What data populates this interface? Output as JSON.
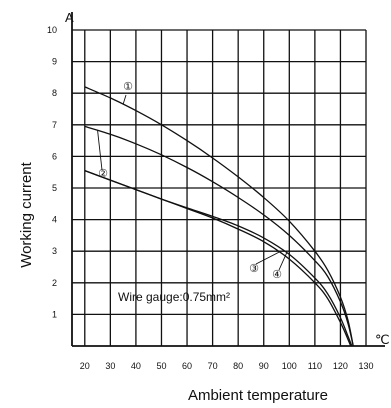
{
  "chart_data": {
    "type": "line",
    "title": "",
    "xlabel": "Ambient temperature",
    "ylabel": "Working current",
    "x_unit": "℃",
    "y_unit": "A",
    "xlim": [
      15,
      130
    ],
    "ylim": [
      0,
      10
    ],
    "x_ticks": [
      20,
      30,
      40,
      50,
      60,
      70,
      80,
      90,
      100,
      110,
      120,
      130
    ],
    "y_ticks": [
      1,
      2,
      3,
      4,
      5,
      6,
      7,
      8,
      9,
      10
    ],
    "grid": true,
    "annotation": "Wire gauge:0.75mm²",
    "series": [
      {
        "name": "①",
        "x": [
          20,
          30,
          40,
          50,
          60,
          70,
          80,
          90,
          100,
          110,
          115,
          120,
          123,
          125
        ],
        "y": [
          8.2,
          7.85,
          7.45,
          7.0,
          6.5,
          5.95,
          5.35,
          4.7,
          3.95,
          3.0,
          2.4,
          1.55,
          0.8,
          0.0
        ]
      },
      {
        "name": "②",
        "x": [
          20,
          30,
          40,
          50,
          60,
          70,
          80,
          90,
          100,
          110,
          115,
          120,
          123,
          125
        ],
        "y": [
          6.95,
          6.7,
          6.4,
          6.05,
          5.65,
          5.2,
          4.7,
          4.15,
          3.5,
          2.7,
          2.2,
          1.4,
          0.7,
          0.0
        ]
      },
      {
        "name": "③",
        "x": [
          20,
          30,
          40,
          50,
          60,
          70,
          80,
          90,
          100,
          110,
          115,
          120,
          123,
          124
        ],
        "y": [
          5.55,
          5.25,
          4.95,
          4.65,
          4.35,
          4.05,
          3.7,
          3.3,
          2.75,
          2.0,
          1.5,
          0.75,
          0.2,
          0.0
        ]
      },
      {
        "name": "④",
        "x": [
          20,
          30,
          40,
          50,
          60,
          70,
          80,
          90,
          100,
          110,
          115,
          120,
          123,
          124.5
        ],
        "y": [
          5.55,
          5.25,
          4.95,
          4.65,
          4.37,
          4.1,
          3.8,
          3.42,
          2.9,
          2.15,
          1.65,
          0.9,
          0.3,
          0.0
        ]
      }
    ]
  }
}
